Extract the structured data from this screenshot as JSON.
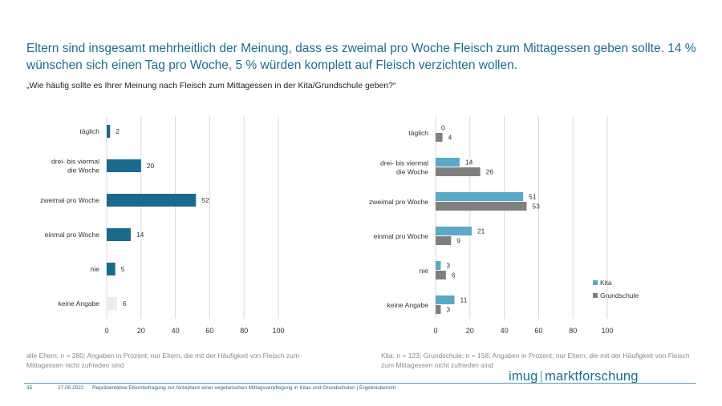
{
  "title": "Eltern sind insgesamt mehrheitlich der Meinung, dass es zweimal pro Woche Fleisch zum Mittagessen geben sollte. 14 % wünschen sich einen Tag pro Woche, 5 % würden komplett auf Fleisch verzichten wollen.",
  "subtitle": "„Wie häufig sollte es Ihrer Meinung nach Fleisch zum Mittagessen in der Kita/Grundschule geben?“",
  "notes": {
    "left": "alle Eltern: n = 280; Angaben in Prozent; nur Eltern, die mit der Häufigkeit von Fleisch zum Mittagessen nicht zufrieden sind",
    "right": "Kita: n = 123; Grundschule: n = 158; Angaben in Prozent; nur Eltern, die mit der Häufigkeit von Fleisch zum Mittagessen nicht zufrieden sind"
  },
  "footer": {
    "page": "35",
    "date": "27.05.2022",
    "text": "Repräsentative Elternbefragung zur Akzeptanz einer vegetarischen Mittagsverpflegung in Kitas und Grundschulen | Ergebnisbericht"
  },
  "logo": {
    "left": "imug",
    "right": "marktforschung"
  },
  "colors": {
    "dark_blue": "#1b6a8e",
    "light_blue": "#5aa9c6",
    "grey": "#7f7f7f",
    "light_grey": "#ededed",
    "grid": "#d9d9d9"
  },
  "chart_data": [
    {
      "type": "bar",
      "orientation": "horizontal",
      "categories": [
        [
          "täglich"
        ],
        [
          "drei- bis viermal",
          "die Woche"
        ],
        [
          "zweimal pro Woche"
        ],
        [
          "einmal pro Woche"
        ],
        [
          "nie"
        ],
        [
          "keine Angabe"
        ]
      ],
      "series": [
        {
          "values": [
            2,
            20,
            52,
            14,
            5,
            6
          ],
          "colors": [
            "#1b6a8e",
            "#1b6a8e",
            "#1b6a8e",
            "#1b6a8e",
            "#1b6a8e",
            "#ededed"
          ]
        }
      ],
      "xlim": [
        0,
        100
      ],
      "xticks": [
        0,
        20,
        40,
        60,
        80,
        100
      ],
      "grid": "vertical",
      "legend": "none"
    },
    {
      "type": "bar",
      "orientation": "horizontal",
      "categories": [
        [
          "täglich"
        ],
        [
          "drei- bis viermal",
          "die Woche"
        ],
        [
          "zweimal pro Woche"
        ],
        [
          "einmal pro Woche"
        ],
        [
          "nie"
        ],
        [
          "keine Angabe"
        ]
      ],
      "series": [
        {
          "name": "Kita",
          "values": [
            0,
            14,
            51,
            21,
            3,
            11
          ],
          "color": "#5aa9c6"
        },
        {
          "name": "Grundschule",
          "values": [
            4,
            26,
            53,
            9,
            6,
            3
          ],
          "color": "#7f7f7f"
        }
      ],
      "xlim": [
        0,
        100
      ],
      "xticks": [
        0,
        20,
        40,
        60,
        80,
        100
      ],
      "grid": "vertical",
      "legend": "right"
    }
  ]
}
